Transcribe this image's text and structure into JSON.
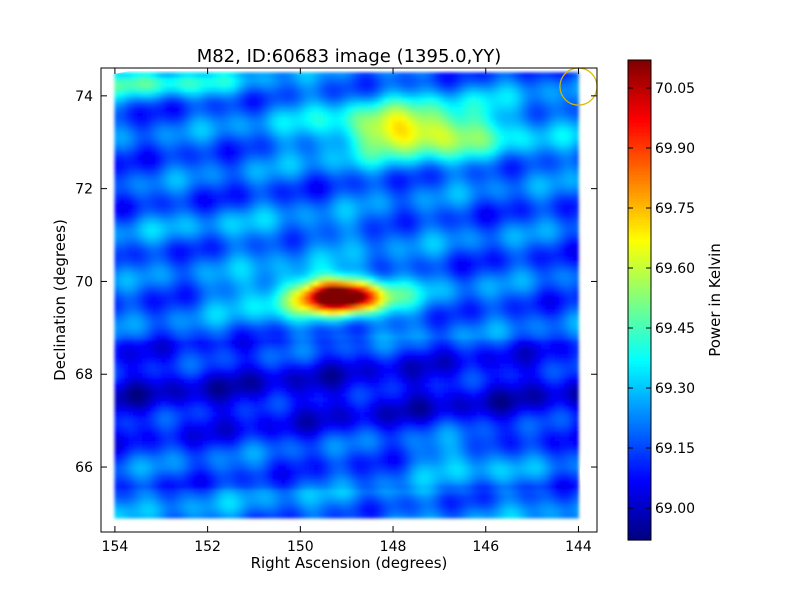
{
  "chart_data": {
    "type": "heatmap",
    "title": "M82, ID:60683 image (1395.0,YY)",
    "xlabel": "Right Ascension (degrees)",
    "ylabel": "Declination (degrees)",
    "xlim": [
      154.3,
      143.6
    ],
    "ylim": [
      64.6,
      74.6
    ],
    "x_ticks": [
      {
        "value": 154,
        "label": "154"
      },
      {
        "value": 152,
        "label": "152"
      },
      {
        "value": 150,
        "label": "150"
      },
      {
        "value": 148,
        "label": "148"
      },
      {
        "value": 146,
        "label": "146"
      },
      {
        "value": 144,
        "label": "144"
      }
    ],
    "y_ticks": [
      {
        "value": 66,
        "label": "66"
      },
      {
        "value": 68,
        "label": "68"
      },
      {
        "value": 70,
        "label": "70"
      },
      {
        "value": 72,
        "label": "72"
      },
      {
        "value": 74,
        "label": "74"
      }
    ],
    "colorbar": {
      "label": "Power in Kelvin",
      "range": [
        68.92,
        70.12
      ],
      "colormap": "jet",
      "ticks": [
        {
          "value": 69.0,
          "label": "69.00"
        },
        {
          "value": 69.15,
          "label": "69.15"
        },
        {
          "value": 69.3,
          "label": "69.30"
        },
        {
          "value": 69.45,
          "label": "69.45"
        },
        {
          "value": 69.6,
          "label": "69.60"
        },
        {
          "value": 69.75,
          "label": "69.75"
        },
        {
          "value": 69.9,
          "label": "69.90"
        },
        {
          "value": 70.05,
          "label": "70.05"
        }
      ]
    },
    "data_extent": {
      "ra": [
        154.0,
        144.0
      ],
      "dec": [
        64.9,
        74.5
      ]
    },
    "features": [
      {
        "ra": 149.1,
        "dec": 69.68,
        "peak": 70.1
      },
      {
        "ra": 147.6,
        "dec": 73.25,
        "peak": 69.6
      },
      {
        "ra": 153.5,
        "dec": 74.3,
        "peak": 69.45
      },
      {
        "ra": 146.5,
        "dec": 66.2,
        "peak": 69.32
      }
    ],
    "beam_marker": {
      "ra": 144.0,
      "dec": 74.2,
      "radius_deg": 0.4,
      "color": "#d8b800"
    },
    "grid": false
  }
}
